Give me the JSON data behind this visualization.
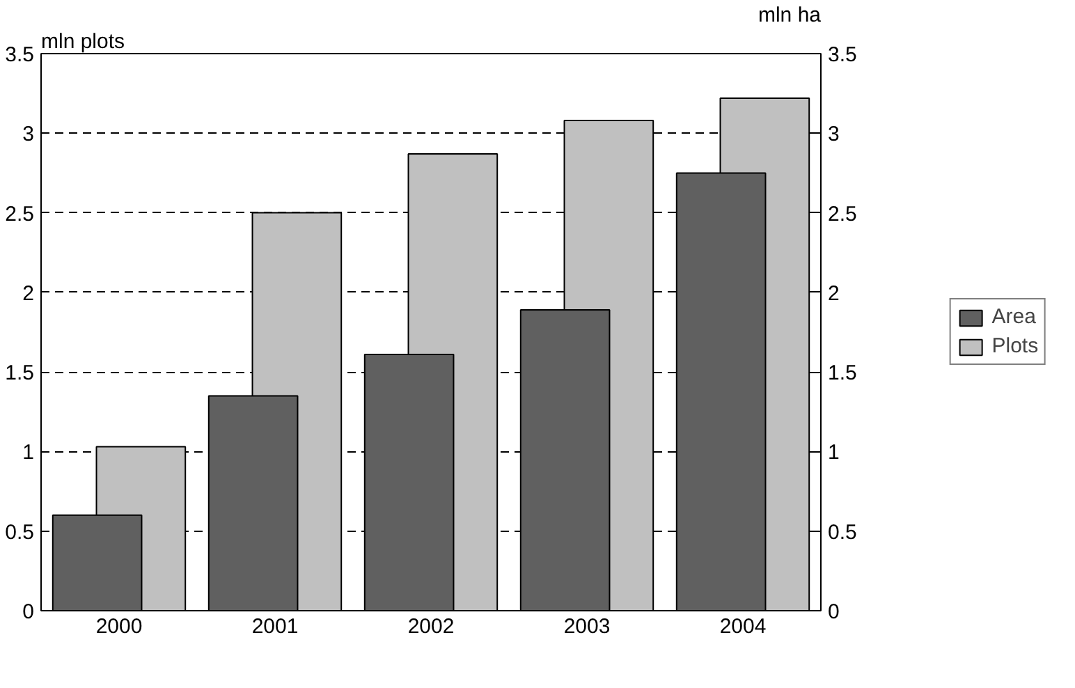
{
  "chart_data": {
    "type": "bar",
    "ylabel": "mln plots",
    "y2label": "mln ha",
    "categories": [
      "2000",
      "2001",
      "2002",
      "2003",
      "2004"
    ],
    "series": [
      {
        "name": "Plots",
        "color": "#c0c0c0",
        "values": [
          1.03,
          2.5,
          2.87,
          3.08,
          3.22
        ]
      },
      {
        "name": "Area",
        "color": "#606060",
        "values": [
          0.6,
          1.35,
          1.61,
          1.89,
          2.75
        ]
      }
    ],
    "ylim": [
      0,
      3.5
    ],
    "yticks": [
      0,
      0.5,
      1,
      1.5,
      2,
      2.5,
      3,
      3.5
    ],
    "y2lim": [
      0,
      3.5
    ],
    "y2ticks": [
      0,
      0.5,
      1,
      1.5,
      2,
      2.5,
      3,
      3.5
    ],
    "grid": "y",
    "legend": "right"
  }
}
